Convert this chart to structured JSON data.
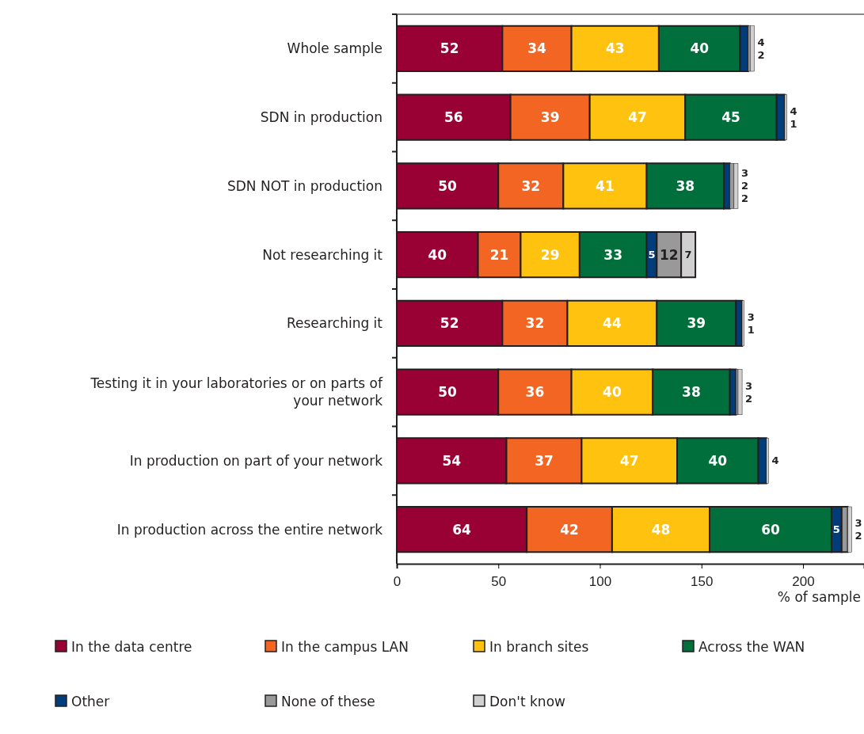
{
  "chart_data": {
    "type": "bar",
    "orientation": "horizontal",
    "stacked": true,
    "xlabel": "% of sample",
    "categories": [
      "Whole sample",
      "SDN in production",
      "SDN NOT in production",
      "Not researching it",
      "Researching it",
      "Testing it in your laboratories or on parts of your network",
      "In production on part of your network",
      "In production across the entire network"
    ],
    "series": [
      {
        "name": "In the data centre",
        "color": "#990033",
        "values": [
          52,
          56,
          50,
          40,
          52,
          50,
          54,
          64
        ],
        "value_labels": [
          "52",
          "56",
          "50",
          "40",
          "52",
          "50",
          "54",
          "64"
        ]
      },
      {
        "name": "In the campus LAN",
        "color": "#f26522",
        "values": [
          34,
          39,
          32,
          21,
          32,
          36,
          37,
          42
        ],
        "value_labels": [
          "34",
          "39",
          "32",
          "21",
          "32",
          "36",
          "37",
          "42"
        ]
      },
      {
        "name": "In branch sites",
        "color": "#ffc20e",
        "values": [
          43,
          47,
          41,
          29,
          44,
          40,
          47,
          48
        ],
        "value_labels": [
          "43",
          "47",
          "41",
          "29",
          "44",
          "40",
          "47",
          "48"
        ]
      },
      {
        "name": "Across the WAN",
        "color": "#006f3c",
        "values": [
          40,
          45,
          38,
          33,
          39,
          38,
          40,
          60
        ],
        "value_labels": [
          "40",
          "45",
          "38",
          "33",
          "39",
          "38",
          "40",
          "60"
        ]
      },
      {
        "name": "Other",
        "color": "#003d7a",
        "values": [
          4,
          4,
          3,
          5,
          3,
          3,
          4,
          5
        ],
        "value_labels": [
          "4",
          "4",
          "3",
          "5",
          "3",
          "3",
          "4",
          "5"
        ]
      },
      {
        "name": "None of these",
        "color": "#999999",
        "values": [
          1,
          0,
          2,
          12,
          0,
          1,
          0,
          3
        ],
        "value_labels": [
          null,
          null,
          "2",
          "12",
          null,
          null,
          null,
          "3"
        ]
      },
      {
        "name": "Don't know",
        "color": "#d0d0d0",
        "values": [
          2,
          1,
          2,
          7,
          1,
          2,
          1,
          2
        ],
        "value_labels": [
          "2",
          "1",
          "2",
          "7",
          "1",
          "2",
          null,
          "2"
        ]
      }
    ],
    "xlim": [
      0,
      230
    ],
    "xticks": [
      0,
      50,
      100,
      150,
      200
    ],
    "legend": "bottom",
    "grid": false
  }
}
